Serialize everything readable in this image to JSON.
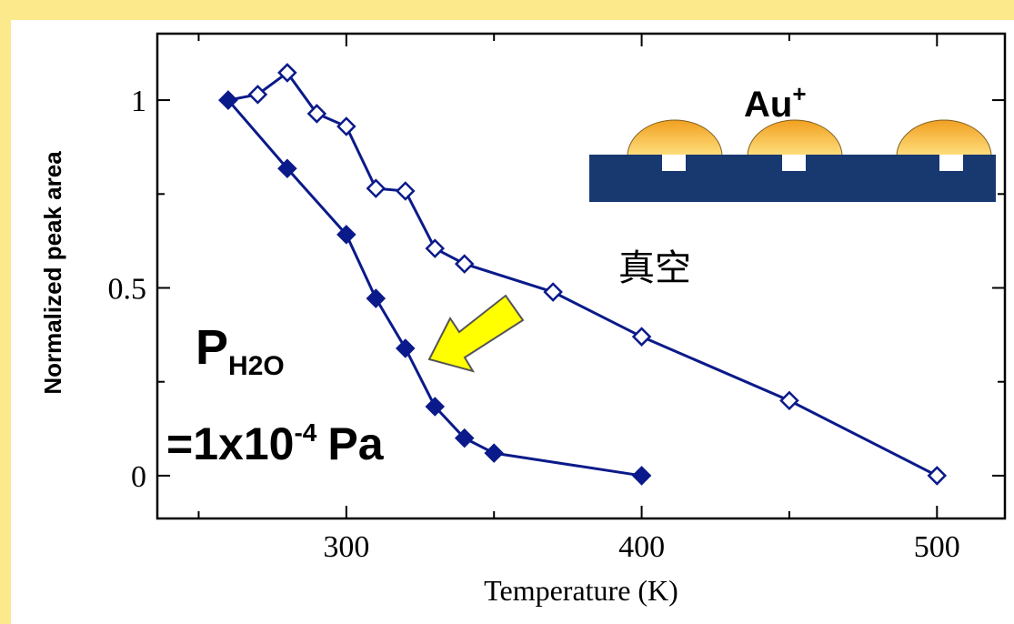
{
  "chart_data": {
    "type": "line",
    "xlabel": "Temperature (K)",
    "ylabel": "Normalized peak area",
    "xlim": [
      236,
      523
    ],
    "ylim": [
      -0.114,
      1.177
    ],
    "xticks": [
      300,
      400,
      500
    ],
    "yticks": [
      0,
      0.5,
      1
    ],
    "xminor": [
      250,
      350,
      450
    ],
    "yminor": [
      0.25,
      0.75
    ],
    "series": [
      {
        "color": "#0b1a8a",
        "marker": "open",
        "x": [
          260,
          270,
          280,
          290,
          300,
          310,
          320,
          330,
          340,
          370,
          400,
          450,
          500
        ],
        "values": [
          1.0,
          1.015,
          1.073,
          0.964,
          0.93,
          0.765,
          0.758,
          0.605,
          0.564,
          0.489,
          0.37,
          0.2,
          0
        ]
      },
      {
        "color": "#0b1a8a",
        "marker": "filled",
        "x": [
          260,
          280,
          300,
          310,
          320,
          330,
          340,
          350,
          400
        ],
        "values": [
          1.0,
          0.818,
          0.642,
          0.472,
          0.339,
          0.184,
          0.1,
          0.06,
          0
        ]
      }
    ],
    "annotations": {
      "ion": {
        "text": "Au",
        "sup": "+"
      },
      "vacuum": "真空",
      "pressure_symbol": {
        "text": "P",
        "sub": "H2O"
      },
      "pressure_value": {
        "text": "=1x10",
        "sup": "-4",
        "unit": "Pa"
      }
    }
  }
}
